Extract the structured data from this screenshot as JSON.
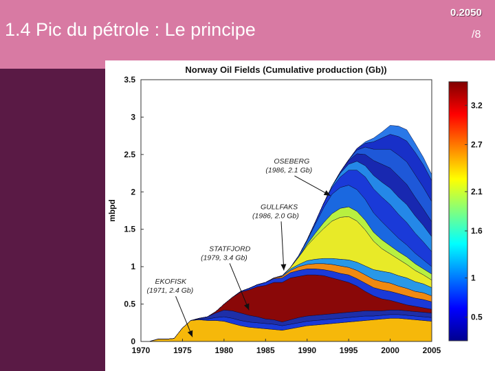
{
  "slide": {
    "title": "1.4 Pic du pétrole  : Le principe",
    "brand": "0.2050",
    "page": "/8"
  },
  "colors": {
    "header": "#d87aa3",
    "sidebar": "#5a1a45"
  },
  "chart_data": {
    "type": "area",
    "title": "Norway Oil Fields (Cumulative production (Gb))",
    "xlabel": "",
    "ylabel": "mbpd",
    "xlim": [
      1970,
      2005
    ],
    "ylim": [
      0,
      3.5
    ],
    "xticks": [
      "1970",
      "1975",
      "1980",
      "1985",
      "1990",
      "1995",
      "2000",
      "2005"
    ],
    "yticks": [
      "0",
      "0.5",
      "1",
      "1.5",
      "2",
      "2.5",
      "3",
      "3.5"
    ],
    "x": [
      1971,
      1972,
      1973,
      1974,
      1975,
      1976,
      1977,
      1978,
      1979,
      1980,
      1981,
      1982,
      1983,
      1984,
      1985,
      1986,
      1987,
      1988,
      1989,
      1990,
      1991,
      1992,
      1993,
      1994,
      1995,
      1996,
      1997,
      1998,
      1999,
      2000,
      2001,
      2002,
      2003,
      2004,
      2005
    ],
    "series": [
      {
        "name": "EKOFISK",
        "color": "#f6b80a",
        "values": [
          0.0,
          0.03,
          0.03,
          0.04,
          0.18,
          0.28,
          0.29,
          0.28,
          0.28,
          0.27,
          0.24,
          0.21,
          0.19,
          0.18,
          0.17,
          0.16,
          0.15,
          0.17,
          0.19,
          0.21,
          0.22,
          0.23,
          0.24,
          0.25,
          0.26,
          0.27,
          0.28,
          0.29,
          0.3,
          0.31,
          0.31,
          0.3,
          0.29,
          0.28,
          0.27
        ]
      },
      {
        "name": "",
        "color": "#1a3ad8",
        "values": [
          0.0,
          0.0,
          0.0,
          0.0,
          0.0,
          0.0,
          0.01,
          0.02,
          0.04,
          0.06,
          0.07,
          0.07,
          0.07,
          0.07,
          0.07,
          0.07,
          0.06,
          0.06,
          0.06,
          0.06,
          0.06,
          0.06,
          0.06,
          0.06,
          0.06,
          0.06,
          0.06,
          0.05,
          0.05,
          0.05,
          0.05,
          0.05,
          0.05,
          0.05,
          0.05
        ]
      },
      {
        "name": "",
        "color": "#1e2fa8",
        "values": [
          0.0,
          0.0,
          0.0,
          0.0,
          0.0,
          0.0,
          0.01,
          0.03,
          0.06,
          0.09,
          0.1,
          0.1,
          0.09,
          0.08,
          0.06,
          0.06,
          0.05,
          0.06,
          0.07,
          0.07,
          0.07,
          0.07,
          0.07,
          0.07,
          0.07,
          0.07,
          0.07,
          0.07,
          0.06,
          0.06,
          0.06,
          0.06,
          0.06,
          0.06,
          0.06
        ]
      },
      {
        "name": "STATFJORD",
        "color": "#8a0808",
        "values": [
          0.0,
          0.0,
          0.0,
          0.0,
          0.0,
          0.0,
          0.0,
          0.0,
          0.02,
          0.08,
          0.18,
          0.28,
          0.34,
          0.4,
          0.45,
          0.5,
          0.53,
          0.56,
          0.55,
          0.55,
          0.54,
          0.52,
          0.48,
          0.44,
          0.4,
          0.34,
          0.26,
          0.2,
          0.16,
          0.13,
          0.1,
          0.08,
          0.07,
          0.06,
          0.05
        ]
      },
      {
        "name": "",
        "color": "#1a3ad8",
        "values": [
          0.0,
          0.0,
          0.0,
          0.0,
          0.0,
          0.0,
          0.0,
          0.0,
          0.0,
          0.0,
          0.0,
          0.01,
          0.02,
          0.03,
          0.04,
          0.05,
          0.06,
          0.07,
          0.08,
          0.08,
          0.08,
          0.08,
          0.09,
          0.09,
          0.1,
          0.1,
          0.11,
          0.11,
          0.12,
          0.12,
          0.12,
          0.12,
          0.11,
          0.11,
          0.1
        ]
      },
      {
        "name": "",
        "color": "#f08a12",
        "values": [
          0.0,
          0.0,
          0.0,
          0.0,
          0.0,
          0.0,
          0.0,
          0.0,
          0.0,
          0.0,
          0.0,
          0.0,
          0.0,
          0.0,
          0.0,
          0.01,
          0.02,
          0.03,
          0.05,
          0.06,
          0.07,
          0.08,
          0.09,
          0.1,
          0.1,
          0.11,
          0.11,
          0.11,
          0.11,
          0.11,
          0.1,
          0.1,
          0.09,
          0.09,
          0.08
        ]
      },
      {
        "name": "",
        "color": "#2898e8",
        "values": [
          0.0,
          0.0,
          0.0,
          0.0,
          0.0,
          0.0,
          0.0,
          0.0,
          0.0,
          0.0,
          0.0,
          0.0,
          0.0,
          0.0,
          0.0,
          0.0,
          0.01,
          0.02,
          0.03,
          0.05,
          0.06,
          0.07,
          0.08,
          0.09,
          0.1,
          0.11,
          0.12,
          0.13,
          0.14,
          0.14,
          0.14,
          0.14,
          0.13,
          0.12,
          0.11
        ]
      },
      {
        "name": "GULLFAKS",
        "color": "#e8ea28",
        "values": [
          0.0,
          0.0,
          0.0,
          0.0,
          0.0,
          0.0,
          0.0,
          0.0,
          0.0,
          0.0,
          0.0,
          0.0,
          0.0,
          0.0,
          0.0,
          0.0,
          0.0,
          0.02,
          0.1,
          0.2,
          0.3,
          0.4,
          0.5,
          0.56,
          0.58,
          0.55,
          0.48,
          0.38,
          0.3,
          0.25,
          0.22,
          0.18,
          0.15,
          0.12,
          0.1
        ]
      },
      {
        "name": "",
        "color": "#b8f040",
        "values": [
          0.0,
          0.0,
          0.0,
          0.0,
          0.0,
          0.0,
          0.0,
          0.0,
          0.0,
          0.0,
          0.0,
          0.0,
          0.0,
          0.0,
          0.0,
          0.0,
          0.0,
          0.0,
          0.0,
          0.02,
          0.05,
          0.08,
          0.1,
          0.12,
          0.13,
          0.13,
          0.13,
          0.12,
          0.12,
          0.11,
          0.1,
          0.1,
          0.09,
          0.08,
          0.08
        ]
      },
      {
        "name": "OSEBERG",
        "color": "#1a68e0",
        "values": [
          0.0,
          0.0,
          0.0,
          0.0,
          0.0,
          0.0,
          0.0,
          0.0,
          0.0,
          0.0,
          0.0,
          0.0,
          0.0,
          0.0,
          0.0,
          0.0,
          0.0,
          0.0,
          0.02,
          0.05,
          0.12,
          0.2,
          0.26,
          0.28,
          0.29,
          0.29,
          0.28,
          0.26,
          0.24,
          0.21,
          0.18,
          0.16,
          0.14,
          0.12,
          0.1
        ]
      },
      {
        "name": "",
        "color": "#1a3ad8",
        "values": [
          0.0,
          0.0,
          0.0,
          0.0,
          0.0,
          0.0,
          0.0,
          0.0,
          0.0,
          0.0,
          0.0,
          0.0,
          0.0,
          0.0,
          0.0,
          0.0,
          0.0,
          0.0,
          0.0,
          0.01,
          0.03,
          0.06,
          0.09,
          0.14,
          0.2,
          0.26,
          0.3,
          0.32,
          0.33,
          0.34,
          0.32,
          0.3,
          0.27,
          0.24,
          0.2
        ]
      },
      {
        "name": "",
        "color": "#2488e8",
        "values": [
          0.0,
          0.0,
          0.0,
          0.0,
          0.0,
          0.0,
          0.0,
          0.0,
          0.0,
          0.0,
          0.0,
          0.0,
          0.0,
          0.0,
          0.0,
          0.0,
          0.0,
          0.0,
          0.0,
          0.0,
          0.0,
          0.0,
          0.02,
          0.05,
          0.08,
          0.12,
          0.15,
          0.18,
          0.2,
          0.22,
          0.23,
          0.24,
          0.23,
          0.22,
          0.2
        ]
      },
      {
        "name": "",
        "color": "#1828b0",
        "values": [
          0.0,
          0.0,
          0.0,
          0.0,
          0.0,
          0.0,
          0.0,
          0.0,
          0.0,
          0.0,
          0.0,
          0.0,
          0.0,
          0.0,
          0.0,
          0.0,
          0.0,
          0.0,
          0.0,
          0.0,
          0.0,
          0.0,
          0.0,
          0.02,
          0.05,
          0.1,
          0.15,
          0.2,
          0.24,
          0.27,
          0.28,
          0.27,
          0.25,
          0.22,
          0.2
        ]
      },
      {
        "name": "",
        "color": "#1e58d8",
        "values": [
          0.0,
          0.0,
          0.0,
          0.0,
          0.0,
          0.0,
          0.0,
          0.0,
          0.0,
          0.0,
          0.0,
          0.0,
          0.0,
          0.0,
          0.0,
          0.0,
          0.0,
          0.0,
          0.0,
          0.0,
          0.0,
          0.0,
          0.0,
          0.0,
          0.01,
          0.05,
          0.1,
          0.15,
          0.2,
          0.25,
          0.28,
          0.3,
          0.3,
          0.29,
          0.27
        ]
      },
      {
        "name": "",
        "color": "#1830c8",
        "values": [
          0.0,
          0.0,
          0.0,
          0.0,
          0.0,
          0.0,
          0.0,
          0.0,
          0.0,
          0.0,
          0.0,
          0.0,
          0.0,
          0.0,
          0.0,
          0.0,
          0.0,
          0.0,
          0.0,
          0.0,
          0.0,
          0.0,
          0.0,
          0.0,
          0.0,
          0.02,
          0.05,
          0.1,
          0.15,
          0.2,
          0.25,
          0.28,
          0.3,
          0.3,
          0.28
        ]
      },
      {
        "name": "",
        "color": "#2a78e8",
        "values": [
          0.0,
          0.0,
          0.0,
          0.0,
          0.0,
          0.0,
          0.0,
          0.0,
          0.0,
          0.0,
          0.0,
          0.0,
          0.0,
          0.0,
          0.0,
          0.0,
          0.0,
          0.0,
          0.0,
          0.0,
          0.0,
          0.0,
          0.0,
          0.0,
          0.0,
          0.0,
          0.02,
          0.05,
          0.08,
          0.12,
          0.14,
          0.15,
          0.12,
          0.1,
          0.08
        ]
      }
    ],
    "annotations": [
      {
        "label": "OSEBERG",
        "detail": "(1986, 2.1 Gb)",
        "x": 1986,
        "y": 2.38,
        "target_x": 1992.8,
        "target_y": 1.95
      },
      {
        "label": "GULLFAKS",
        "detail": "(1986, 2.0 Gb)",
        "x": 1984.4,
        "y": 1.77,
        "target_x": 1987.2,
        "target_y": 0.95
      },
      {
        "label": "STATFJORD",
        "detail": "(1979, 3.4 Gb)",
        "x": 1978.2,
        "y": 1.21,
        "target_x": 1983,
        "target_y": 0.42
      },
      {
        "label": "EKOFISK",
        "detail": "(1971, 2.4 Gb)",
        "x": 1971.7,
        "y": 0.77,
        "target_x": 1976.2,
        "target_y": 0.06
      }
    ],
    "colorbar": {
      "ticks": [
        "3.2",
        "2.7",
        "2.1",
        "1.6",
        "1",
        "0.5"
      ],
      "min": 0.2,
      "max": 3.5
    },
    "grid": false,
    "legend": "none"
  }
}
